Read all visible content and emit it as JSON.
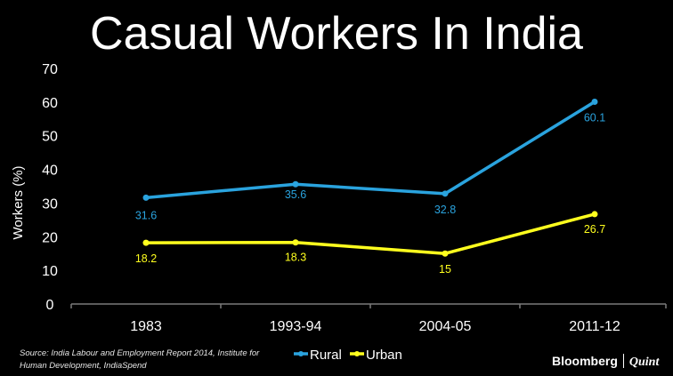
{
  "title": "Casual Workers In India",
  "source": "Source: India Labour and Employment Report 2014, Institute for Human Development, IndiaSpend",
  "brand": {
    "name": "Bloomberg",
    "partner": "Quint"
  },
  "chart_data": {
    "type": "line",
    "title": "Casual Workers In India",
    "ylabel": "Workers (%)",
    "xlabel": "",
    "categories": [
      "1983",
      "1993-94",
      "2004-05",
      "2011-12"
    ],
    "ylim": [
      0,
      70
    ],
    "yticks": [
      0,
      10,
      20,
      30,
      40,
      50,
      60,
      70
    ],
    "grid": false,
    "legend_position": "bottom",
    "series": [
      {
        "name": "Rural",
        "color": "#2aa3de",
        "values": [
          31.6,
          35.6,
          32.8,
          60.1
        ],
        "labels": [
          "31.6",
          "35.6",
          "32.8",
          "60.1"
        ]
      },
      {
        "name": "Urban",
        "color": "#ffff1e",
        "values": [
          18.2,
          18.3,
          15,
          26.7
        ],
        "labels": [
          "18.2",
          "18.3",
          "15",
          "26.7"
        ]
      }
    ]
  }
}
